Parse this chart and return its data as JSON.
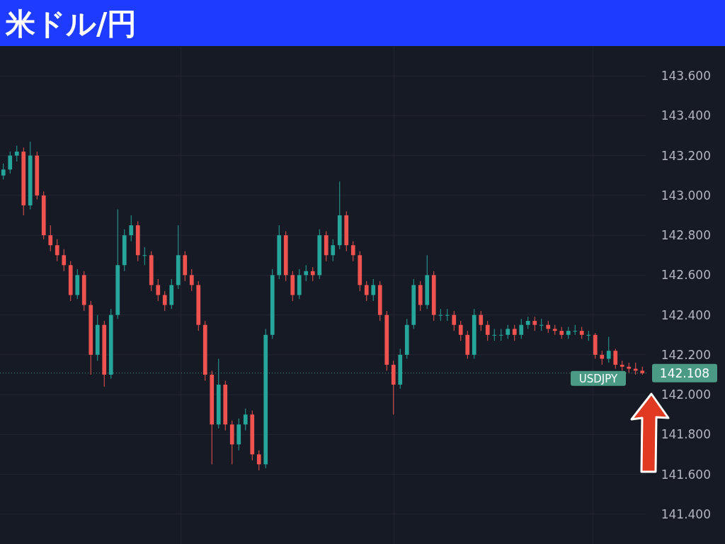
{
  "chart_data": {
    "type": "candlestick",
    "title": "米ドル/円",
    "categories": [
      null,
      null,
      null,
      null,
      null,
      null,
      null,
      null,
      null,
      null,
      null,
      null,
      null,
      null,
      null,
      null,
      null,
      null,
      null,
      null,
      null,
      null,
      null,
      null,
      null,
      null,
      null,
      null,
      null,
      null,
      null,
      null,
      null,
      null,
      null,
      null,
      null,
      null,
      null,
      null,
      null,
      null,
      null,
      null,
      null,
      null,
      null,
      null,
      null,
      null,
      null,
      null,
      null,
      null,
      null,
      null,
      null,
      null,
      null,
      null,
      null,
      null,
      null,
      null,
      null,
      null,
      null,
      null,
      null,
      null,
      null,
      null,
      null,
      null,
      null,
      null,
      null,
      null,
      null,
      null,
      null,
      null,
      null,
      null,
      null,
      null,
      null,
      null,
      null,
      null,
      null,
      null,
      null,
      null,
      null,
      null
    ],
    "ohlc": [
      [
        143.1,
        143.16,
        143.08,
        143.13
      ],
      [
        143.13,
        143.22,
        143.11,
        143.2
      ],
      [
        143.2,
        143.25,
        143.17,
        143.22
      ],
      [
        143.22,
        143.24,
        142.9,
        142.95
      ],
      [
        142.95,
        143.27,
        142.93,
        143.2
      ],
      [
        143.2,
        143.22,
        142.98,
        143.0
      ],
      [
        143.0,
        143.02,
        142.78,
        142.8
      ],
      [
        142.8,
        142.85,
        142.72,
        142.75
      ],
      [
        142.75,
        142.78,
        142.67,
        142.7
      ],
      [
        142.7,
        142.73,
        142.62,
        142.65
      ],
      [
        142.65,
        142.67,
        142.47,
        142.5
      ],
      [
        142.5,
        142.63,
        142.48,
        142.6
      ],
      [
        142.6,
        142.62,
        142.42,
        142.45
      ],
      [
        142.45,
        142.47,
        142.1,
        142.2
      ],
      [
        142.2,
        142.4,
        142.17,
        142.35
      ],
      [
        142.35,
        142.37,
        142.04,
        142.1
      ],
      [
        142.1,
        142.43,
        142.08,
        142.4
      ],
      [
        142.4,
        142.93,
        142.38,
        142.65
      ],
      [
        142.65,
        142.83,
        142.62,
        142.8
      ],
      [
        142.8,
        142.9,
        142.77,
        142.85
      ],
      [
        142.85,
        142.87,
        142.67,
        142.7
      ],
      [
        142.7,
        142.74,
        142.65,
        142.7
      ],
      [
        142.7,
        142.72,
        142.52,
        142.55
      ],
      [
        142.55,
        142.58,
        142.47,
        142.5
      ],
      [
        142.5,
        142.52,
        142.42,
        142.45
      ],
      [
        142.45,
        142.58,
        142.43,
        142.55
      ],
      [
        142.55,
        142.85,
        142.53,
        142.7
      ],
      [
        142.7,
        142.72,
        142.57,
        142.6
      ],
      [
        142.6,
        142.63,
        142.52,
        142.55
      ],
      [
        142.55,
        142.57,
        142.32,
        142.35
      ],
      [
        142.35,
        142.37,
        142.07,
        142.1
      ],
      [
        142.1,
        142.12,
        141.65,
        141.85
      ],
      [
        141.85,
        142.18,
        141.83,
        142.05
      ],
      [
        142.05,
        142.07,
        141.82,
        141.85
      ],
      [
        141.85,
        141.87,
        141.65,
        141.75
      ],
      [
        141.75,
        141.88,
        141.72,
        141.85
      ],
      [
        141.85,
        141.93,
        141.82,
        141.9
      ],
      [
        141.9,
        141.92,
        141.67,
        141.7
      ],
      [
        141.7,
        141.72,
        141.62,
        141.65
      ],
      [
        141.65,
        142.33,
        141.63,
        142.3
      ],
      [
        142.3,
        142.63,
        142.28,
        142.6
      ],
      [
        142.6,
        142.85,
        142.58,
        142.8
      ],
      [
        142.8,
        142.82,
        142.57,
        142.6
      ],
      [
        142.6,
        142.62,
        142.47,
        142.5
      ],
      [
        142.5,
        142.63,
        142.48,
        142.6
      ],
      [
        142.6,
        142.65,
        142.57,
        142.62
      ],
      [
        142.62,
        142.64,
        142.57,
        142.6
      ],
      [
        142.6,
        142.83,
        142.58,
        142.8
      ],
      [
        142.8,
        142.82,
        142.67,
        142.7
      ],
      [
        142.7,
        142.78,
        142.67,
        142.75
      ],
      [
        142.75,
        143.07,
        142.73,
        142.9
      ],
      [
        142.9,
        142.92,
        142.72,
        142.75
      ],
      [
        142.75,
        142.77,
        142.67,
        142.7
      ],
      [
        142.7,
        142.72,
        142.52,
        142.55
      ],
      [
        142.55,
        142.57,
        142.47,
        142.5
      ],
      [
        142.5,
        142.58,
        142.47,
        142.55
      ],
      [
        142.55,
        142.57,
        142.37,
        142.4
      ],
      [
        142.4,
        142.42,
        142.12,
        142.15
      ],
      [
        142.15,
        142.17,
        141.9,
        142.05
      ],
      [
        142.05,
        142.23,
        142.03,
        142.2
      ],
      [
        142.2,
        142.38,
        142.18,
        142.35
      ],
      [
        142.35,
        142.58,
        142.33,
        142.55
      ],
      [
        142.55,
        142.57,
        142.42,
        142.45
      ],
      [
        142.45,
        142.7,
        142.43,
        142.6
      ],
      [
        142.6,
        142.62,
        142.37,
        142.4
      ],
      [
        142.4,
        142.43,
        142.37,
        142.4
      ],
      [
        142.4,
        142.43,
        142.37,
        142.4
      ],
      [
        142.4,
        142.42,
        142.32,
        142.35
      ],
      [
        142.35,
        142.37,
        142.27,
        142.3
      ],
      [
        142.3,
        142.32,
        142.18,
        142.2
      ],
      [
        142.2,
        142.43,
        142.18,
        142.4
      ],
      [
        142.4,
        142.42,
        142.32,
        142.35
      ],
      [
        142.35,
        142.37,
        142.27,
        142.3
      ],
      [
        142.3,
        142.33,
        142.27,
        142.3
      ],
      [
        142.3,
        142.33,
        142.27,
        142.3
      ],
      [
        142.3,
        142.35,
        142.28,
        142.33
      ],
      [
        142.33,
        142.35,
        142.27,
        142.3
      ],
      [
        142.3,
        142.38,
        142.28,
        142.35
      ],
      [
        142.35,
        142.39,
        142.33,
        142.37
      ],
      [
        142.37,
        142.39,
        142.32,
        142.35
      ],
      [
        142.35,
        142.38,
        142.32,
        142.35
      ],
      [
        142.35,
        142.37,
        142.31,
        142.33
      ],
      [
        142.33,
        142.35,
        142.3,
        142.32
      ],
      [
        142.32,
        142.34,
        142.28,
        142.3
      ],
      [
        142.3,
        142.34,
        142.28,
        142.32
      ],
      [
        142.32,
        142.35,
        142.3,
        142.32
      ],
      [
        142.32,
        142.34,
        142.28,
        142.3
      ],
      [
        142.3,
        142.32,
        142.27,
        142.3
      ],
      [
        142.3,
        142.31,
        142.18,
        142.2
      ],
      [
        142.2,
        142.22,
        142.15,
        142.18
      ],
      [
        142.18,
        142.29,
        142.16,
        142.22
      ],
      [
        142.22,
        142.23,
        142.13,
        142.15
      ],
      [
        142.15,
        142.17,
        142.12,
        142.14
      ],
      [
        142.14,
        142.16,
        142.11,
        142.13
      ],
      [
        142.13,
        142.16,
        142.1,
        142.12
      ],
      [
        142.12,
        142.14,
        142.1,
        142.108
      ]
    ],
    "ylim": [
      141.25,
      143.75
    ],
    "yticks": [
      {
        "value": 141.4,
        "label": "141.400"
      },
      {
        "value": 141.6,
        "label": "141.600"
      },
      {
        "value": 141.8,
        "label": "141.800"
      },
      {
        "value": 142.0,
        "label": "142.000"
      },
      {
        "value": 142.2,
        "label": "142.200"
      },
      {
        "value": 142.4,
        "label": "142.400"
      },
      {
        "value": 142.6,
        "label": "142.600"
      },
      {
        "value": 142.8,
        "label": "142.800"
      },
      {
        "value": 143.0,
        "label": "143.000"
      },
      {
        "value": 143.2,
        "label": "143.200"
      },
      {
        "value": 143.4,
        "label": "143.400"
      },
      {
        "value": 143.6,
        "label": "143.600"
      }
    ],
    "ref_lines": [
      {
        "axis": "y",
        "value": 142.108,
        "label": "USDJPY",
        "color": "#4a9a86",
        "line_style": "dotted"
      }
    ],
    "annotations": [
      "142.108"
    ],
    "grid": true
  }
}
